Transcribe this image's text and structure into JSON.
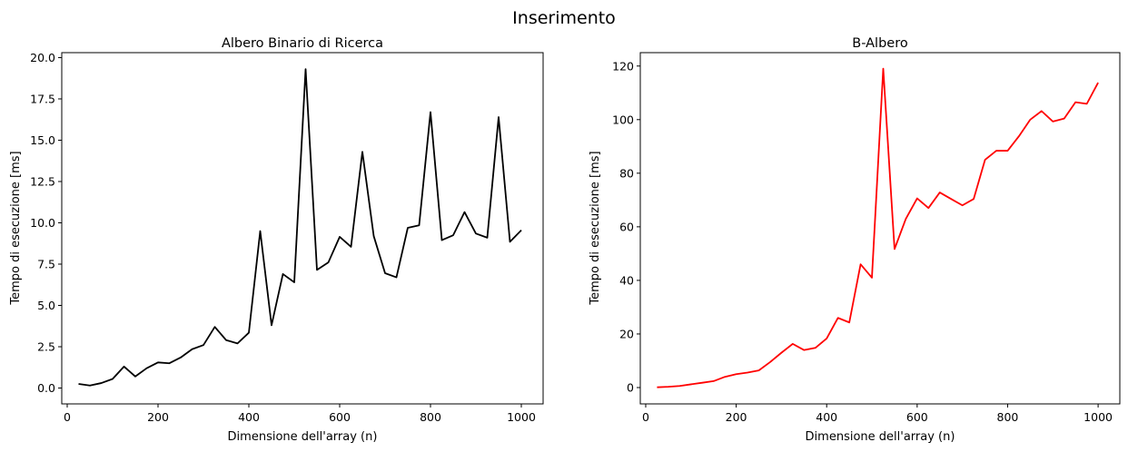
{
  "figure": {
    "title": "Inserimento"
  },
  "chart_data": [
    {
      "type": "line",
      "title": "Albero Binario di Ricerca",
      "xlabel": "Dimensione dell'array (n)",
      "ylabel": "Tempo di esecuzione [ms]",
      "xlim": [
        -12,
        1048
      ],
      "ylim": [
        -0.96,
        20.3
      ],
      "xticks": [
        0,
        200,
        400,
        600,
        800,
        1000
      ],
      "xtick_labels": [
        "0",
        "200",
        "400",
        "600",
        "800",
        "1000"
      ],
      "yticks": [
        0,
        2.5,
        5,
        7.5,
        10,
        12.5,
        15,
        17.5,
        20
      ],
      "ytick_labels": [
        "0.0",
        "2.5",
        "5.0",
        "7.5",
        "10.0",
        "12.5",
        "15.0",
        "17.5",
        "20.0"
      ],
      "grid": false,
      "color": "#000000",
      "series": [
        {
          "x": [
            25,
            50,
            75,
            100,
            125,
            150,
            175,
            200,
            225,
            250,
            275,
            300,
            325,
            350,
            375,
            400,
            425,
            450,
            475,
            500,
            525,
            550,
            575,
            600,
            625,
            650,
            675,
            700,
            725,
            750,
            775,
            800,
            825,
            850,
            875,
            900,
            925,
            950,
            975,
            1000
          ],
          "values": [
            0.25,
            0.15,
            0.3,
            0.55,
            1.3,
            0.7,
            1.2,
            1.55,
            1.5,
            1.85,
            2.35,
            2.6,
            3.7,
            2.9,
            2.7,
            3.35,
            9.5,
            3.8,
            6.9,
            6.4,
            19.3,
            7.15,
            7.6,
            9.15,
            8.55,
            14.3,
            9.2,
            6.95,
            6.7,
            9.7,
            9.85,
            16.7,
            8.95,
            9.25,
            10.65,
            9.35,
            9.1,
            16.4,
            8.85,
            9.55
          ]
        }
      ]
    },
    {
      "type": "line",
      "title": "B-Albero",
      "xlabel": "Dimensione dell'array (n)",
      "ylabel": "Tempo di esecuzione [ms]",
      "xlim": [
        -12,
        1048
      ],
      "ylim": [
        -6.1,
        125
      ],
      "xticks": [
        0,
        200,
        400,
        600,
        800,
        1000
      ],
      "xtick_labels": [
        "0",
        "200",
        "400",
        "600",
        "800",
        "1000"
      ],
      "yticks": [
        0,
        20,
        40,
        60,
        80,
        100,
        120
      ],
      "ytick_labels": [
        "0",
        "20",
        "40",
        "60",
        "80",
        "100",
        "120"
      ],
      "grid": false,
      "color": "#ff0000",
      "series": [
        {
          "x": [
            25,
            50,
            75,
            100,
            125,
            150,
            175,
            200,
            225,
            250,
            275,
            300,
            325,
            350,
            375,
            400,
            425,
            450,
            475,
            500,
            525,
            550,
            575,
            600,
            625,
            650,
            675,
            700,
            725,
            750,
            775,
            800,
            825,
            850,
            875,
            900,
            925,
            950,
            975,
            1000
          ],
          "values": [
            0.1,
            0.3,
            0.6,
            1.2,
            1.8,
            2.4,
            4.0,
            5.0,
            5.6,
            6.4,
            9.5,
            13.0,
            16.3,
            14.0,
            14.8,
            18.3,
            26.0,
            24.3,
            46.0,
            41.0,
            119.0,
            51.7,
            63.0,
            70.6,
            67.0,
            72.8,
            70.4,
            68.0,
            70.4,
            85.0,
            88.4,
            88.4,
            93.8,
            100.0,
            103.2,
            99.3,
            100.4,
            106.5,
            105.9,
            113.8
          ]
        }
      ]
    }
  ]
}
